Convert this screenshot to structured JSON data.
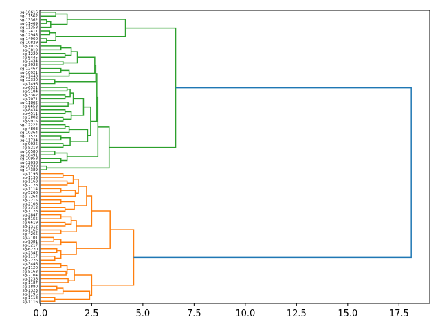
{
  "chart_data": {
    "type": "dendrogram",
    "orientation": "right",
    "title": "",
    "xlabel": "",
    "ylabel": "",
    "xlim": [
      -0.03,
      19.0
    ],
    "xticks": [
      "0.0",
      "2.5",
      "5.0",
      "7.5",
      "10.0",
      "12.5",
      "15.0",
      "17.5"
    ],
    "xtick_values": [
      0,
      2.5,
      5,
      7.5,
      10,
      12.5,
      15,
      17.5
    ],
    "above_threshold_color": "#1f77b4",
    "root_height": 18.1,
    "clusters": [
      {
        "name": "cluster-green",
        "color": "#2ca02c",
        "tree": [
          6.6,
          [
            4.15,
            [
              1.3,
              [
                0.75,
                "sg-10616",
                "sg-11562"
              ],
              [
                0.5,
                [
                  0.3,
                  "sg-13362",
                  "sg-11469"
                ],
                "sg-11358"
              ]
            ],
            [
              0.75,
              [
                0.45,
                "sg-12411",
                "sg-12945"
              ],
              [
                0.3,
                "sg-14960",
                "sg-10829"
              ]
            ]
          ],
          [
            3.35,
            [
              2.8,
              [
                2.75,
                [
                  2.7,
                  [
                    2.65,
                    [
                      1.8,
                      [
                        1.5,
                        [
                          1.0,
                          "sg-1016",
                          "sg-3019"
                        ],
                        [
                          1.2,
                          "sg-1229",
                          "sg-6445"
                        ]
                      ],
                      [
                        1.1,
                        "sg-7434",
                        "sg-3923"
                      ]
                    ],
                    [
                      1.4,
                      [
                        1.0,
                        "sg-12467",
                        "sg-10921"
                      ],
                      "sg-11443"
                    ]
                  ],
                  [
                    0.7,
                    "sg-12330",
                    "sg-1496"
                  ]
                ],
                [
                  2.45,
                  [
                    2.1,
                    [
                      1.6,
                      [
                        1.45,
                        [
                          1.3,
                          "sg-6521",
                          "sg-9104"
                        ],
                        [
                          1.2,
                          "sg-3362",
                          "sg-7071"
                        ]
                      ],
                      [
                        1.35,
                        "sg-11862",
                        "sg-6653"
                      ]
                    ],
                    [
                      1.5,
                      [
                        1.2,
                        "sg-8434",
                        "sg-4511"
                      ],
                      [
                        1.1,
                        "sg-2802",
                        "sg-9915"
                      ]
                    ]
                  ],
                  [
                    2.3,
                    [
                      1.4,
                      [
                        1.2,
                        "sg-12222",
                        "sg-4803"
                      ],
                      "sg-10364"
                    ],
                    [
                      1.45,
                      [
                        1.0,
                        "sg-11571",
                        "sg-11734"
                      ],
                      [
                        1.1,
                        "sg-9025",
                        "sg-5218"
                      ]
                    ]
                  ]
                ]
              ],
              [
                1.3,
                [
                  0.7,
                  "sg-10580",
                  "sg-10491"
                ],
                [
                  1.0,
                  "sg-10958",
                  "sg-12038"
                ]
              ]
            ],
            [
              0.3,
              "sg-10939",
              "sg-14389"
            ]
          ]
        ]
      },
      {
        "name": "cluster-orange",
        "color": "#ff7f0e",
        "tree": [
          4.55,
          [
            3.4,
            [
              2.5,
              [
                2.25,
                [
                  1.85,
                  [
                    1.6,
                    [
                      1.1,
                      "sg-1196",
                      "sg-1136"
                    ],
                    [
                      1.3,
                      "sg-1163",
                      "sg-2128"
                    ]
                  ],
                  [
                    1.7,
                    [
                      1.0,
                      "sg-1114",
                      "sg-5266"
                    ],
                    "sg-7264"
                  ]
                ],
                [
                  1.65,
                  [
                    1.0,
                    "sg-7215",
                    "sg-2108"
                  ],
                  [
                    1.2,
                    "sg-3312",
                    "sg-1128"
                  ]
                ]
              ],
              [
                1.75,
                [
                  1.5,
                  [
                    1.0,
                    "sg-2847",
                    "sg-6155"
                  ],
                  [
                    1.2,
                    "sg-6619",
                    "sg-1312"
                  ]
                ],
                [
                  1.0,
                  "sg-1162",
                  "sg-4265"
                ]
              ]
            ],
            [
              1.75,
              [
                1.0,
                [
                  0.65,
                  "sg-2101",
                  "sg-9381"
                ],
                "sg-3217"
              ],
              [
                1.0,
                [
                  0.8,
                  "sg-6220",
                  "sg-2347"
                ],
                [
                  0.7,
                  "sg-1117",
                  "sg-2226"
                ]
              ]
            ]
          ],
          [
            2.5,
            [
              1.65,
              [
                1.3,
                [
                  1.0,
                  "sg-3446",
                  "sg-1120"
                ],
                [
                  1.25,
                  "sg-5163",
                  "sg-2104"
                ]
              ],
              [
                1.35,
                "sg-1238",
                "sg-1187"
              ]
            ],
            [
              2.4,
              [
                1.1,
                [
                  0.8,
                  "sg-1880",
                  "sg-1323"
                ],
                "sg-1195"
              ],
              [
                0.7,
                "sg-1118",
                "sg-1116"
              ]
            ]
          ]
        ]
      }
    ]
  }
}
